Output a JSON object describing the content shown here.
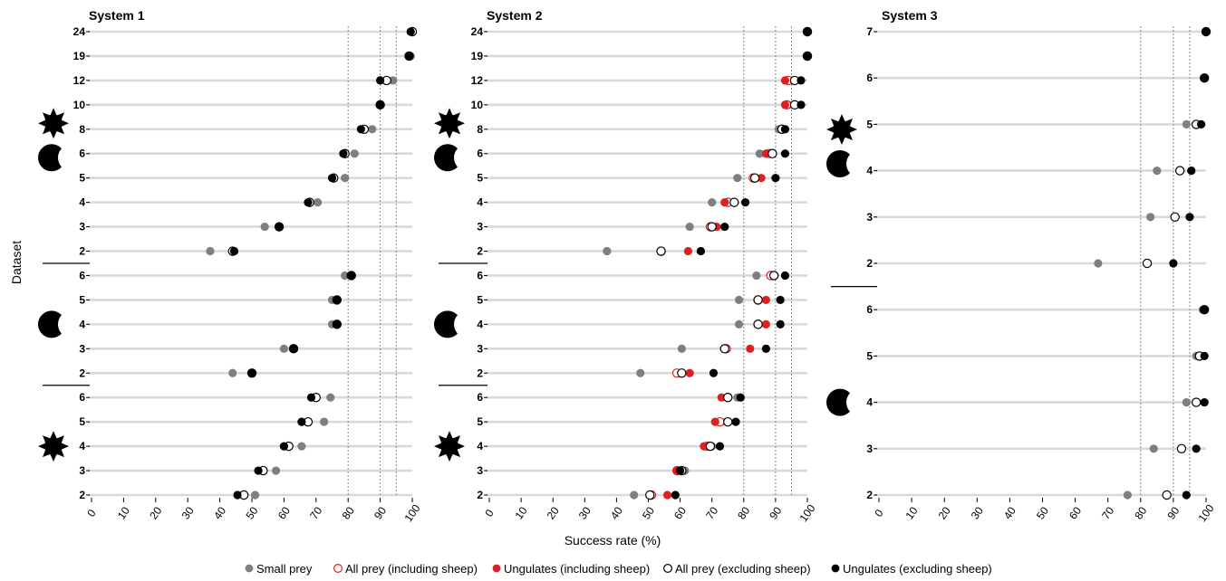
{
  "chart_data": {
    "type": "scatter",
    "xlabel": "Success rate (%)",
    "ylabel": "Dataset",
    "xlim": [
      0,
      100
    ],
    "x_ticks": [
      "0",
      "10",
      "20",
      "30",
      "40",
      "50",
      "60",
      "70",
      "80",
      "90",
      "100"
    ],
    "reference_lines": [
      80,
      90,
      95
    ],
    "legend_position": "bottom",
    "colors": {
      "small_prey": "#7f7f7f",
      "all_prey_incl": "#e02020",
      "ungulates_incl": "#e02020",
      "all_prey_excl": "#000000",
      "ungulates_excl": "#000000",
      "line": "#d9d9d9"
    },
    "series_legend": [
      {
        "key": "small",
        "name": "Small prey",
        "style": "filled",
        "color": "#7f7f7f"
      },
      {
        "key": "apIn",
        "name": "All prey (including sheep)",
        "style": "open",
        "color": "#e02020"
      },
      {
        "key": "ugIn",
        "name": "Ungulates (including sheep)",
        "style": "filled",
        "color": "#e02020"
      },
      {
        "key": "apEx",
        "name": "All prey (excluding sheep)",
        "style": "open",
        "color": "#000000"
      },
      {
        "key": "ugEx",
        "name": "Ungulates (excluding sheep)",
        "style": "filled",
        "color": "#000000"
      }
    ],
    "panels": [
      {
        "title": "System 1",
        "groups": [
          {
            "icons": [
              "sun-icon",
              "moon-icon"
            ],
            "rows": [
              {
                "label": "24",
                "small": 100,
                "apEx": 100,
                "ugEx": 99.5
              },
              {
                "label": "19",
                "small": 99.5,
                "apEx": 99,
                "ugEx": 99
              },
              {
                "label": "12",
                "small": 94,
                "apEx": 92,
                "ugEx": 90
              },
              {
                "label": "10",
                "small": 90,
                "apEx": 90,
                "ugEx": 90
              },
              {
                "label": "8",
                "small": 87.5,
                "apEx": 85,
                "ugEx": 84
              },
              {
                "label": "6",
                "small": 82,
                "apEx": 79,
                "ugEx": 78.5
              },
              {
                "label": "5",
                "small": 79,
                "apEx": 75.5,
                "ugEx": 75
              },
              {
                "label": "4",
                "small": 70.5,
                "apEx": 68,
                "ugEx": 67.5
              },
              {
                "label": "3",
                "small": 54,
                "apEx": 58.5,
                "ugEx": 58.5
              },
              {
                "label": "2",
                "small": 37,
                "apEx": 44,
                "ugEx": 44.5
              }
            ]
          },
          {
            "icons": [
              "moon-icon"
            ],
            "rows": [
              {
                "label": "6",
                "small": 79,
                "apEx": 81,
                "ugEx": 81
              },
              {
                "label": "5",
                "small": 75,
                "apEx": 76.5,
                "ugEx": 76.5
              },
              {
                "label": "4",
                "small": 75,
                "apEx": 76.5,
                "ugEx": 76.5
              },
              {
                "label": "3",
                "small": 60,
                "apEx": 63,
                "ugEx": 63
              },
              {
                "label": "2",
                "small": 44,
                "apEx": 50,
                "ugEx": 50
              }
            ]
          },
          {
            "icons": [
              "sun-icon"
            ],
            "rows": [
              {
                "label": "6",
                "small": 74.5,
                "apEx": 70,
                "ugEx": 68.5
              },
              {
                "label": "5",
                "small": 72.5,
                "apEx": 67.5,
                "ugEx": 65.5
              },
              {
                "label": "4",
                "small": 65.5,
                "apEx": 61.5,
                "ugEx": 60
              },
              {
                "label": "3",
                "small": 57.5,
                "apEx": 53.5,
                "ugEx": 52
              },
              {
                "label": "2",
                "small": 51,
                "apEx": 47.5,
                "ugEx": 45.5
              }
            ]
          }
        ]
      },
      {
        "title": "System 2",
        "groups": [
          {
            "icons": [
              "sun-icon",
              "moon-icon"
            ],
            "rows": [
              {
                "label": "24",
                "small": 100,
                "apIn": 100,
                "ugIn": 100,
                "apEx": 100,
                "ugEx": 100
              },
              {
                "label": "19",
                "small": 100,
                "apIn": 100,
                "ugIn": 100,
                "apEx": 100,
                "ugEx": 100
              },
              {
                "label": "12",
                "small": 95.5,
                "apIn": 94,
                "ugIn": 93,
                "apEx": 96,
                "ugEx": 98
              },
              {
                "label": "10",
                "small": 94,
                "apIn": 93.5,
                "ugIn": 93,
                "apEx": 96,
                "ugEx": 98
              },
              {
                "label": "8",
                "small": 91,
                "apIn": 92,
                "ugIn": 92.5,
                "apEx": 92,
                "ugEx": 93
              },
              {
                "label": "6",
                "small": 85,
                "apIn": 88,
                "ugIn": 87,
                "apEx": 89,
                "ugEx": 93
              },
              {
                "label": "5",
                "small": 78,
                "apIn": 83,
                "ugIn": 85.5,
                "apEx": 83.5,
                "ugEx": 90
              },
              {
                "label": "4",
                "small": 70,
                "apIn": 75,
                "ugIn": 74,
                "apEx": 77,
                "ugEx": 80.5
              },
              {
                "label": "3",
                "small": 63,
                "apIn": 69.5,
                "ugIn": 71.5,
                "apEx": 70,
                "ugEx": 74
              },
              {
                "label": "2",
                "small": 37,
                "apIn": 54,
                "ugIn": 62.5,
                "apEx": 54,
                "ugEx": 66.5
              }
            ]
          },
          {
            "icons": [
              "moon-icon"
            ],
            "rows": [
              {
                "label": "6",
                "small": 84,
                "apIn": 88.5,
                "ugIn": 89.5,
                "apEx": 89.5,
                "ugEx": 93
              },
              {
                "label": "5",
                "small": 78.5,
                "apIn": 84.5,
                "ugIn": 87,
                "apEx": 84.5,
                "ugEx": 91.5
              },
              {
                "label": "4",
                "small": 78.5,
                "apIn": 84.5,
                "ugIn": 87,
                "apEx": 84.5,
                "ugEx": 91.5
              },
              {
                "label": "3",
                "small": 60.5,
                "apIn": 74.5,
                "ugIn": 82,
                "apEx": 74,
                "ugEx": 87
              },
              {
                "label": "2",
                "small": 47.5,
                "apIn": 59,
                "ugIn": 63,
                "apEx": 60.5,
                "ugEx": 70.5
              }
            ]
          },
          {
            "icons": [
              "sun-icon"
            ],
            "rows": [
              {
                "label": "6",
                "small": 78,
                "apIn": 75,
                "ugIn": 73,
                "apEx": 75,
                "ugEx": 79
              },
              {
                "label": "5",
                "small": 74.5,
                "apIn": 72.5,
                "ugIn": 71,
                "apEx": 75,
                "ugEx": 77.5
              },
              {
                "label": "4",
                "small": 70,
                "apIn": 68.5,
                "ugIn": 67.5,
                "apEx": 69.5,
                "ugEx": 72.5
              },
              {
                "label": "3",
                "small": 61.5,
                "apIn": 59,
                "ugIn": 59,
                "apEx": 60.5,
                "ugEx": 60
              },
              {
                "label": "2",
                "small": 45.5,
                "apIn": 51,
                "ugIn": 56,
                "apEx": 50.5,
                "ugEx": 58.5
              }
            ]
          }
        ]
      },
      {
        "title": "System 3",
        "groups": [
          {
            "icons": [
              "sun-icon",
              "moon-icon"
            ],
            "rows": [
              {
                "label": "7",
                "small": 100,
                "apEx": 100,
                "ugEx": 100
              },
              {
                "label": "6",
                "small": 99.5,
                "apEx": 99.5,
                "ugEx": 99.5
              },
              {
                "label": "5",
                "small": 94,
                "apEx": 97,
                "ugEx": 98.5
              },
              {
                "label": "4",
                "small": 85,
                "apEx": 92,
                "ugEx": 95.5
              },
              {
                "label": "3",
                "small": 83,
                "apEx": 90.5,
                "ugEx": 95
              },
              {
                "label": "2",
                "small": 67,
                "apEx": 82,
                "ugEx": 90
              }
            ]
          },
          {
            "icons": [
              "moon-icon"
            ],
            "rows": [
              {
                "label": "6",
                "small": 99,
                "apEx": 99.5,
                "ugEx": 99.5
              },
              {
                "label": "5",
                "small": 97,
                "apEx": 98,
                "ugEx": 99.5
              },
              {
                "label": "4",
                "small": 94,
                "apEx": 97,
                "ugEx": 99.5
              },
              {
                "label": "3",
                "small": 84,
                "apEx": 92.5,
                "ugEx": 97
              },
              {
                "label": "2",
                "small": 76,
                "apEx": 88,
                "ugEx": 94
              }
            ]
          }
        ]
      }
    ]
  }
}
